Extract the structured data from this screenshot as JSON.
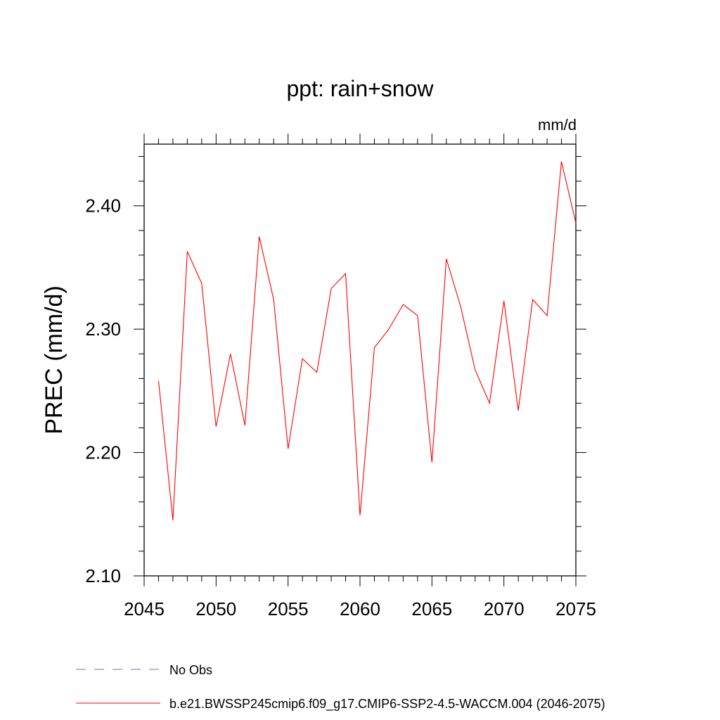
{
  "chart_data": {
    "type": "line",
    "title": "ppt: rain+snow",
    "units_label": "mm/d",
    "ylabel": "PREC  (mm/d)",
    "xlabel": "",
    "xlim": [
      2045,
      2075
    ],
    "ylim": [
      2.1,
      2.45
    ],
    "x_ticks": [
      "2045",
      "2050",
      "2055",
      "2060",
      "2065",
      "2070",
      "2075"
    ],
    "y_ticks": [
      "2.10",
      "2.20",
      "2.30",
      "2.40"
    ],
    "grid": false,
    "legend_position": "bottom",
    "x": [
      2046,
      2047,
      2048,
      2049,
      2050,
      2051,
      2052,
      2053,
      2054,
      2055,
      2056,
      2057,
      2058,
      2059,
      2060,
      2061,
      2062,
      2063,
      2064,
      2065,
      2066,
      2067,
      2068,
      2069,
      2070,
      2071,
      2072,
      2073,
      2074,
      2075
    ],
    "series": [
      {
        "name": "b.e21.BWSSP245cmip6.f09_g17.CMIP6-SSP2-4.5-WACCM.004 (2046-2075)",
        "color": "#ff0000",
        "style": "solid",
        "values": [
          2.258,
          2.145,
          2.363,
          2.337,
          2.221,
          2.28,
          2.222,
          2.375,
          2.324,
          2.203,
          2.276,
          2.265,
          2.333,
          2.345,
          2.149,
          2.285,
          2.3,
          2.32,
          2.311,
          2.192,
          2.357,
          2.318,
          2.267,
          2.24,
          2.323,
          2.234,
          2.324,
          2.311,
          2.436,
          2.386
        ]
      }
    ],
    "legend": [
      {
        "label": "No Obs",
        "color": "#7b6fb0",
        "style": "dashed"
      },
      {
        "label": "b.e21.BWSSP245cmip6.f09_g17.CMIP6-SSP2-4.5-WACCM.004 (2046-2075)",
        "color": "#ff0000",
        "style": "solid"
      }
    ]
  }
}
